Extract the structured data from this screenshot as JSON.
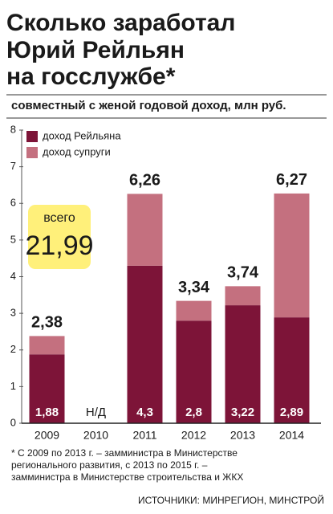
{
  "chart_data": {
    "type": "stacked-bar",
    "title": [
      "Сколько заработал",
      "Юрий Рейльян",
      "на госслужбе*"
    ],
    "subtitle": "совместный с женой годовой доход, млн руб.",
    "categories": [
      "2009",
      "2010",
      "2011",
      "2012",
      "2013",
      "2014"
    ],
    "series": [
      {
        "name": "доход Рейльяна",
        "color": "#7d1438",
        "values": [
          1.88,
          null,
          4.3,
          2.8,
          3.22,
          2.89
        ],
        "value_labels": [
          "1,88",
          null,
          "4,3",
          "2,8",
          "3,22",
          "2,89"
        ]
      },
      {
        "name": "доход супруги",
        "color": "#c4707f",
        "values": [
          0.5,
          null,
          1.96,
          0.54,
          0.52,
          3.38
        ]
      }
    ],
    "totals": {
      "values": [
        2.38,
        null,
        6.26,
        3.34,
        3.74,
        6.27
      ],
      "value_labels": [
        "2,38",
        null,
        "6,26",
        "3,34",
        "3,74",
        "6,27"
      ]
    },
    "missing_label": "Н/Д",
    "total_box": {
      "label": "всего",
      "text": "21,99"
    },
    "ylim": [
      0,
      8
    ],
    "yticks": [
      0,
      1,
      2,
      3,
      4,
      5,
      6,
      7,
      8
    ],
    "footnote": [
      "* С 2009 по 2013 г. – замминистра в Министерстве",
      "регионального развития, с 2013 по 2015 г. –",
      "замминистра в Министерстве строительства и ЖКХ"
    ],
    "source": "ИСТОЧНИКИ: МИНРЕГИОН, МИНСТРОЙ"
  }
}
